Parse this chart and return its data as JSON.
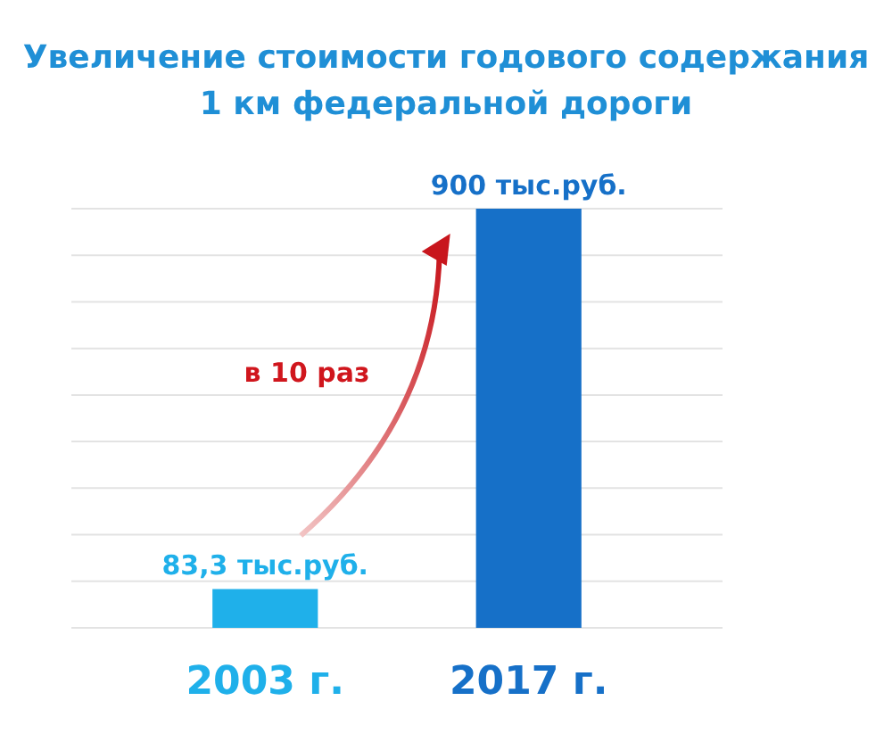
{
  "chart_data": {
    "type": "bar",
    "title": "Увеличение стоимости годового содержания\n1 км федеральной дороги",
    "categories": [
      "2003 г.",
      "2017 г."
    ],
    "values": [
      83.3,
      900
    ],
    "colors": [
      "#1fb0ea",
      "#1670c8"
    ],
    "value_labels": [
      "83,3 тыс.руб.",
      "900 тыс.руб."
    ],
    "ylim": [
      0,
      900
    ],
    "yticks": [
      {
        "value": 0,
        "label": null
      },
      {
        "value": 100,
        "label": null
      },
      {
        "value": 200,
        "label": null
      },
      {
        "value": 300,
        "label": null
      },
      {
        "value": 400,
        "label": null
      },
      {
        "value": 500,
        "label": null
      },
      {
        "value": 600,
        "label": null
      },
      {
        "value": 700,
        "label": null
      },
      {
        "value": 800,
        "label": null
      },
      {
        "value": 900,
        "label": null
      }
    ],
    "grid": "y",
    "annotations": [
      "в 10 раз"
    ]
  }
}
